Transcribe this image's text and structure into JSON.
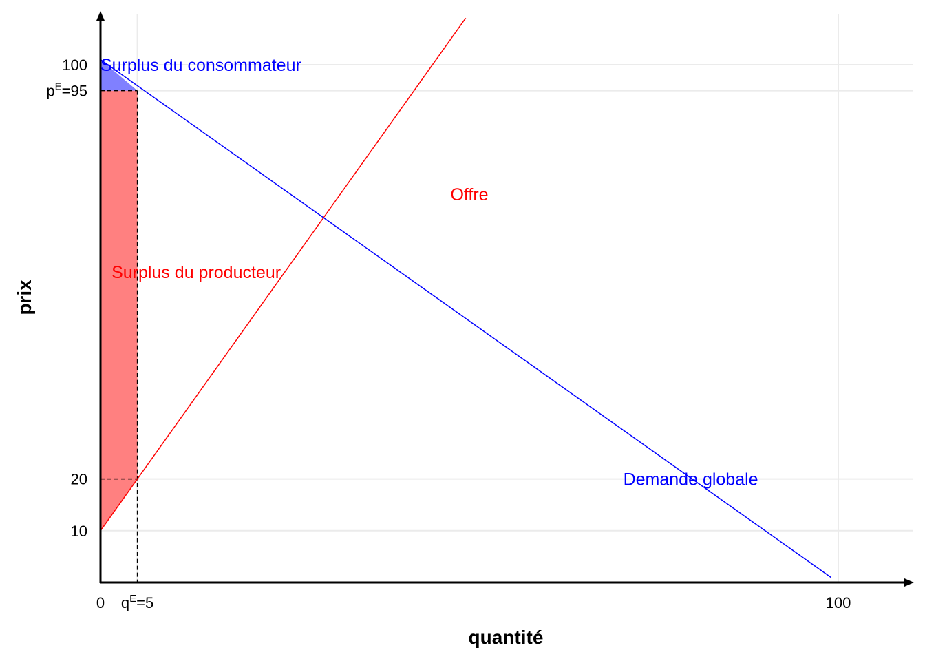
{
  "chart_data": {
    "type": "line",
    "xlabel": "quantité",
    "ylabel": "prix",
    "xlim": [
      0,
      110
    ],
    "ylim": [
      0,
      110
    ],
    "grid": true,
    "colors": {
      "supply": "#ff0000",
      "demand": "#0000ff",
      "producer_surplus": "#ff8080",
      "consumer_surplus": "#8080ff",
      "grid": "#ebebeb",
      "axis": "#000000"
    },
    "x_ticks": [
      {
        "value": 0,
        "label": "0"
      },
      {
        "value": 5,
        "label": "q",
        "sup": "E",
        "suffix": "=5"
      },
      {
        "value": 100,
        "label": "100"
      }
    ],
    "y_ticks": [
      {
        "value": 10,
        "label": "10"
      },
      {
        "value": 20,
        "label": "20"
      },
      {
        "value": 95,
        "label": "p",
        "sup": "E",
        "suffix": "=95"
      },
      {
        "value": 100,
        "label": "100"
      }
    ],
    "x_grid": [
      5,
      100
    ],
    "y_grid": [
      10,
      20,
      95,
      100
    ],
    "series": [
      {
        "name": "Offre",
        "color": "#ff0000",
        "x": [
          0,
          49.5
        ],
        "y": [
          10,
          109
        ]
      },
      {
        "name": "Demande globale",
        "color": "#0000ff",
        "x": [
          0,
          99
        ],
        "y": [
          101,
          1
        ]
      }
    ],
    "equilibrium": {
      "q": 5,
      "p": 95,
      "supply_price": 20
    },
    "areas": [
      {
        "name": "Surplus du producteur",
        "color": "#ff8080",
        "points": [
          [
            0,
            10
          ],
          [
            0,
            95
          ],
          [
            5,
            95
          ],
          [
            5,
            20
          ]
        ]
      },
      {
        "name": "Surplus du consommateur",
        "color": "#8080ff",
        "points": [
          [
            0,
            95
          ],
          [
            0,
            101
          ],
          [
            5,
            95
          ]
        ]
      }
    ],
    "annotations": [
      {
        "text": "Surplus du consommateur",
        "x": 0,
        "y": 100,
        "color": "#0000ff",
        "anchor": "start"
      },
      {
        "text": "Surplus du producteur",
        "x": 1.5,
        "y": 60,
        "color": "#ff0000",
        "anchor": "start"
      },
      {
        "text": "Offre",
        "x": 50,
        "y": 75,
        "color": "#ff0000",
        "anchor": "middle"
      },
      {
        "text": "Demande globale",
        "x": 80,
        "y": 20,
        "color": "#0000ff",
        "anchor": "middle"
      }
    ]
  }
}
